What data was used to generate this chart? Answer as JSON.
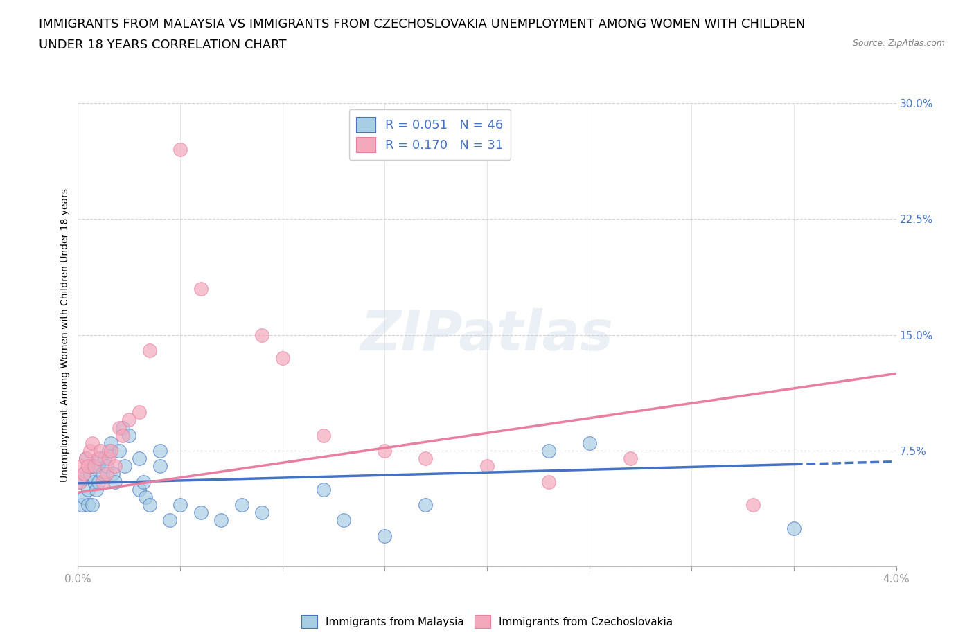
{
  "title_line1": "IMMIGRANTS FROM MALAYSIA VS IMMIGRANTS FROM CZECHOSLOVAKIA UNEMPLOYMENT AMONG WOMEN WITH CHILDREN",
  "title_line2": "UNDER 18 YEARS CORRELATION CHART",
  "source": "Source: ZipAtlas.com",
  "ylabel": "Unemployment Among Women with Children Under 18 years",
  "xlim": [
    0.0,
    0.04
  ],
  "ylim": [
    0.0,
    0.3
  ],
  "xticks": [
    0.0,
    0.005,
    0.01,
    0.015,
    0.02,
    0.025,
    0.03,
    0.035,
    0.04
  ],
  "xtick_labels": [
    "0.0%",
    "",
    "",
    "",
    "",
    "",
    "",
    "",
    "4.0%"
  ],
  "yticks": [
    0.0,
    0.075,
    0.15,
    0.225,
    0.3
  ],
  "ytick_labels": [
    "",
    "7.5%",
    "15.0%",
    "22.5%",
    "30.0%"
  ],
  "color_malaysia": "#A8CEE4",
  "color_czechoslovakia": "#F4A8BC",
  "color_trendline_malaysia": "#4472C4",
  "color_trendline_czechoslovakia": "#E87FA0",
  "R_malaysia": 0.051,
  "N_malaysia": 46,
  "R_czechoslovakia": 0.17,
  "N_czechoslovakia": 31,
  "background_color": "#FFFFFF",
  "grid_color": "#D3D3D3",
  "title_fontsize": 13,
  "axis_label_fontsize": 10,
  "tick_fontsize": 11,
  "legend_fontsize": 13,
  "watermark": "ZIPatlas",
  "malaysia_x": [
    0.0001,
    0.0002,
    0.0003,
    0.0003,
    0.0004,
    0.0005,
    0.0005,
    0.0006,
    0.0007,
    0.0007,
    0.0008,
    0.0009,
    0.001,
    0.001,
    0.0011,
    0.0012,
    0.0013,
    0.0014,
    0.0015,
    0.0016,
    0.0017,
    0.0018,
    0.002,
    0.0022,
    0.0023,
    0.0025,
    0.003,
    0.003,
    0.0032,
    0.0033,
    0.0035,
    0.004,
    0.004,
    0.0045,
    0.005,
    0.006,
    0.007,
    0.008,
    0.009,
    0.012,
    0.013,
    0.015,
    0.017,
    0.023,
    0.025,
    0.035
  ],
  "malaysia_y": [
    0.055,
    0.04,
    0.06,
    0.045,
    0.07,
    0.05,
    0.04,
    0.06,
    0.065,
    0.04,
    0.055,
    0.05,
    0.065,
    0.055,
    0.07,
    0.06,
    0.07,
    0.065,
    0.075,
    0.08,
    0.06,
    0.055,
    0.075,
    0.09,
    0.065,
    0.085,
    0.07,
    0.05,
    0.055,
    0.045,
    0.04,
    0.075,
    0.065,
    0.03,
    0.04,
    0.035,
    0.03,
    0.04,
    0.035,
    0.05,
    0.03,
    0.02,
    0.04,
    0.075,
    0.08,
    0.025
  ],
  "czechoslovakia_x": [
    0.0001,
    0.0002,
    0.0003,
    0.0004,
    0.0005,
    0.0006,
    0.0007,
    0.0008,
    0.001,
    0.0011,
    0.0012,
    0.0014,
    0.0015,
    0.0016,
    0.0018,
    0.002,
    0.0022,
    0.0025,
    0.003,
    0.0035,
    0.005,
    0.006,
    0.009,
    0.01,
    0.012,
    0.015,
    0.017,
    0.02,
    0.023,
    0.027,
    0.033
  ],
  "czechoslovakia_y": [
    0.055,
    0.065,
    0.06,
    0.07,
    0.065,
    0.075,
    0.08,
    0.065,
    0.07,
    0.075,
    0.055,
    0.06,
    0.07,
    0.075,
    0.065,
    0.09,
    0.085,
    0.095,
    0.1,
    0.14,
    0.27,
    0.18,
    0.15,
    0.135,
    0.085,
    0.075,
    0.07,
    0.065,
    0.055,
    0.07,
    0.04
  ],
  "trendline_malaysia_y0": 0.054,
  "trendline_malaysia_y1": 0.068,
  "trendline_czechoslovakia_y0": 0.048,
  "trendline_czechoslovakia_y1": 0.125
}
